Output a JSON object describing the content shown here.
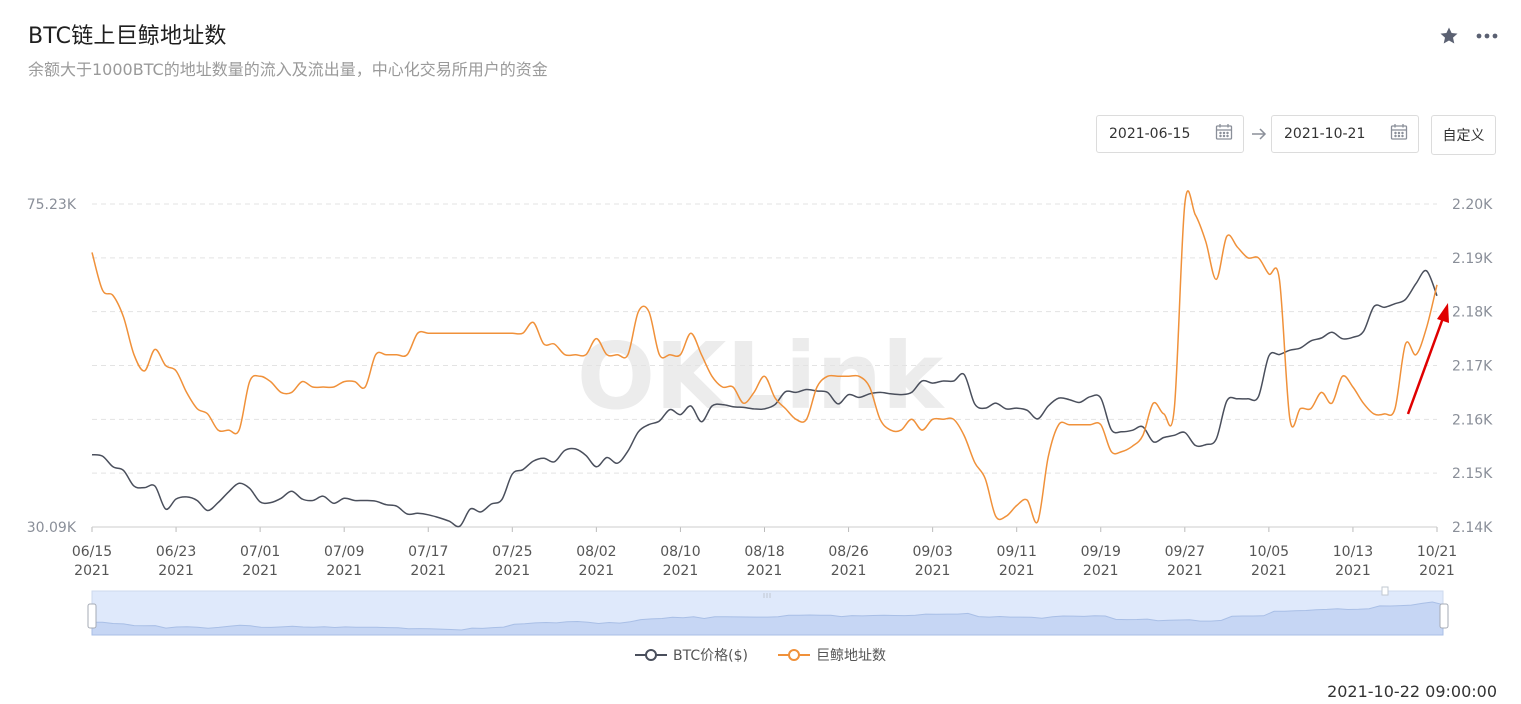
{
  "header": {
    "title": "BTC链上巨鲸地址数",
    "subtitle": "余额大于1000BTC的地址数量的流入及流出量，中心化交易所用户的资金"
  },
  "toolbar": {
    "star_icon": "star-icon",
    "more_icon": "more-icon"
  },
  "date_range": {
    "start": "2021-06-15",
    "end": "2021-10-21",
    "custom_label": "自定义"
  },
  "watermark": "OKLink",
  "timestamp": "2021-10-22 09:00:00",
  "colors": {
    "btc": "#4a4f5c",
    "whale": "#f0913a",
    "grid": "#e3e3e3",
    "navigator": "#dfe9fb",
    "annotation": "#e00000"
  },
  "chart_data": {
    "type": "line",
    "title": "BTC链上巨鲸地址数",
    "x_ticks": [
      {
        "date": "06/15",
        "year": "2021"
      },
      {
        "date": "06/23",
        "year": "2021"
      },
      {
        "date": "07/01",
        "year": "2021"
      },
      {
        "date": "07/09",
        "year": "2021"
      },
      {
        "date": "07/17",
        "year": "2021"
      },
      {
        "date": "07/25",
        "year": "2021"
      },
      {
        "date": "08/02",
        "year": "2021"
      },
      {
        "date": "08/10",
        "year": "2021"
      },
      {
        "date": "08/18",
        "year": "2021"
      },
      {
        "date": "08/26",
        "year": "2021"
      },
      {
        "date": "09/03",
        "year": "2021"
      },
      {
        "date": "09/11",
        "year": "2021"
      },
      {
        "date": "09/19",
        "year": "2021"
      },
      {
        "date": "09/27",
        "year": "2021"
      },
      {
        "date": "10/05",
        "year": "2021"
      },
      {
        "date": "10/13",
        "year": "2021"
      },
      {
        "date": "10/21",
        "year": "2021"
      }
    ],
    "left_axis": {
      "ticks": [
        "75.23K",
        "30.09K"
      ],
      "range": [
        30090,
        75230
      ]
    },
    "right_axis": {
      "ticks": [
        "2.20K",
        "2.19K",
        "2.18K",
        "2.17K",
        "2.16K",
        "2.15K",
        "2.14K"
      ],
      "range": [
        2140,
        2200
      ]
    },
    "grid": true,
    "legend_position": "bottom",
    "series": [
      {
        "name": "BTC价格($)",
        "axis": "left",
        "color": "#4a4f5c",
        "points": [
          [
            "06/15",
            40200
          ],
          [
            "06/16",
            40000
          ],
          [
            "06/17",
            38500
          ],
          [
            "06/18",
            38000
          ],
          [
            "06/19",
            35800
          ],
          [
            "06/20",
            35600
          ],
          [
            "06/21",
            35800
          ],
          [
            "06/22",
            32600
          ],
          [
            "06/23",
            34000
          ],
          [
            "06/24",
            34300
          ],
          [
            "06/25",
            33800
          ],
          [
            "06/26",
            32400
          ],
          [
            "06/27",
            33500
          ],
          [
            "06/28",
            35000
          ],
          [
            "06/29",
            36200
          ],
          [
            "06/30",
            35500
          ],
          [
            "07/01",
            33600
          ],
          [
            "07/02",
            33500
          ],
          [
            "07/03",
            34100
          ],
          [
            "07/04",
            35100
          ],
          [
            "07/05",
            34000
          ],
          [
            "07/06",
            33800
          ],
          [
            "07/07",
            34400
          ],
          [
            "07/08",
            33400
          ],
          [
            "07/09",
            34100
          ],
          [
            "07/10",
            33800
          ],
          [
            "07/11",
            33800
          ],
          [
            "07/12",
            33700
          ],
          [
            "07/13",
            33200
          ],
          [
            "07/14",
            33000
          ],
          [
            "07/15",
            31900
          ],
          [
            "07/16",
            32000
          ],
          [
            "07/17",
            31800
          ],
          [
            "07/18",
            31400
          ],
          [
            "07/19",
            30900
          ],
          [
            "07/20",
            30200
          ],
          [
            "07/21",
            32600
          ],
          [
            "07/22",
            32200
          ],
          [
            "07/23",
            33300
          ],
          [
            "07/24",
            33900
          ],
          [
            "07/25",
            37500
          ],
          [
            "07/26",
            38100
          ],
          [
            "07/27",
            39300
          ],
          [
            "07/28",
            39700
          ],
          [
            "07/29",
            39200
          ],
          [
            "07/30",
            40800
          ],
          [
            "07/31",
            41000
          ],
          [
            "08/01",
            40100
          ],
          [
            "08/02",
            38500
          ],
          [
            "08/03",
            39800
          ],
          [
            "08/04",
            39000
          ],
          [
            "08/05",
            40700
          ],
          [
            "08/06",
            43400
          ],
          [
            "08/07",
            44400
          ],
          [
            "08/08",
            44900
          ],
          [
            "08/09",
            46500
          ],
          [
            "08/10",
            45800
          ],
          [
            "08/11",
            47000
          ],
          [
            "08/12",
            44800
          ],
          [
            "08/13",
            47000
          ],
          [
            "08/14",
            47200
          ],
          [
            "08/15",
            46900
          ],
          [
            "08/16",
            46800
          ],
          [
            "08/17",
            46600
          ],
          [
            "08/18",
            46600
          ],
          [
            "08/19",
            47200
          ],
          [
            "08/20",
            49000
          ],
          [
            "08/21",
            48900
          ],
          [
            "08/22",
            49300
          ],
          [
            "08/23",
            49100
          ],
          [
            "08/24",
            48900
          ],
          [
            "08/25",
            47300
          ],
          [
            "08/26",
            48600
          ],
          [
            "08/27",
            48200
          ],
          [
            "08/28",
            48700
          ],
          [
            "08/29",
            48900
          ],
          [
            "08/30",
            48700
          ],
          [
            "08/31",
            48600
          ],
          [
            "09/01",
            48900
          ],
          [
            "09/02",
            50500
          ],
          [
            "09/03",
            50200
          ],
          [
            "09/04",
            50500
          ],
          [
            "09/05",
            50500
          ],
          [
            "09/06",
            51400
          ],
          [
            "09/07",
            47300
          ],
          [
            "09/08",
            46700
          ],
          [
            "09/09",
            47400
          ],
          [
            "09/10",
            46600
          ],
          [
            "09/11",
            46700
          ],
          [
            "09/12",
            46400
          ],
          [
            "09/13",
            45200
          ],
          [
            "09/14",
            47000
          ],
          [
            "09/15",
            48100
          ],
          [
            "09/16",
            47900
          ],
          [
            "09/17",
            47500
          ],
          [
            "09/18",
            48300
          ],
          [
            "09/19",
            48100
          ],
          [
            "09/20",
            43700
          ],
          [
            "09/21",
            43400
          ],
          [
            "09/22",
            43600
          ],
          [
            "09/23",
            44100
          ],
          [
            "09/24",
            42000
          ],
          [
            "09/25",
            42600
          ],
          [
            "09/26",
            42900
          ],
          [
            "09/27",
            43300
          ],
          [
            "09/28",
            41500
          ],
          [
            "09/29",
            41600
          ],
          [
            "09/30",
            42400
          ],
          [
            "10/01",
            47700
          ],
          [
            "10/02",
            48000
          ],
          [
            "10/03",
            48000
          ],
          [
            "10/04",
            48300
          ],
          [
            "10/05",
            54000
          ],
          [
            "10/06",
            54200
          ],
          [
            "10/07",
            54800
          ],
          [
            "10/08",
            55100
          ],
          [
            "10/09",
            56100
          ],
          [
            "10/10",
            56500
          ],
          [
            "10/11",
            57300
          ],
          [
            "10/12",
            56400
          ],
          [
            "10/13",
            56600
          ],
          [
            "10/14",
            57400
          ],
          [
            "10/15",
            60900
          ],
          [
            "10/16",
            60800
          ],
          [
            "10/17",
            61300
          ],
          [
            "10/18",
            61900
          ],
          [
            "10/19",
            64100
          ],
          [
            "10/20",
            65900
          ],
          [
            "10/21",
            62400
          ]
        ]
      },
      {
        "name": "巨鲸地址数",
        "axis": "right",
        "color": "#f0913a",
        "points": [
          [
            "06/15",
            2191
          ],
          [
            "06/16",
            2184
          ],
          [
            "06/17",
            2183
          ],
          [
            "06/18",
            2179
          ],
          [
            "06/19",
            2172
          ],
          [
            "06/20",
            2169
          ],
          [
            "06/21",
            2173
          ],
          [
            "06/22",
            2170
          ],
          [
            "06/23",
            2169
          ],
          [
            "06/24",
            2165
          ],
          [
            "06/25",
            2162
          ],
          [
            "06/26",
            2161
          ],
          [
            "06/27",
            2158
          ],
          [
            "06/28",
            2158
          ],
          [
            "06/29",
            2158
          ],
          [
            "06/30",
            2167
          ],
          [
            "07/01",
            2168
          ],
          [
            "07/02",
            2167
          ],
          [
            "07/03",
            2165
          ],
          [
            "07/04",
            2165
          ],
          [
            "07/05",
            2167
          ],
          [
            "07/06",
            2166
          ],
          [
            "07/07",
            2166
          ],
          [
            "07/08",
            2166
          ],
          [
            "07/09",
            2167
          ],
          [
            "07/10",
            2167
          ],
          [
            "07/11",
            2166
          ],
          [
            "07/12",
            2172
          ],
          [
            "07/13",
            2172
          ],
          [
            "07/14",
            2172
          ],
          [
            "07/15",
            2172
          ],
          [
            "07/16",
            2176
          ],
          [
            "07/17",
            2176
          ],
          [
            "07/18",
            2176
          ],
          [
            "07/19",
            2176
          ],
          [
            "07/20",
            2176
          ],
          [
            "07/21",
            2176
          ],
          [
            "07/22",
            2176
          ],
          [
            "07/23",
            2176
          ],
          [
            "07/24",
            2176
          ],
          [
            "07/25",
            2176
          ],
          [
            "07/26",
            2176
          ],
          [
            "07/27",
            2178
          ],
          [
            "07/28",
            2174
          ],
          [
            "07/29",
            2174
          ],
          [
            "07/30",
            2172
          ],
          [
            "07/31",
            2172
          ],
          [
            "08/01",
            2172
          ],
          [
            "08/02",
            2175
          ],
          [
            "08/03",
            2172
          ],
          [
            "08/04",
            2172
          ],
          [
            "08/05",
            2172
          ],
          [
            "08/06",
            2180
          ],
          [
            "08/07",
            2180
          ],
          [
            "08/08",
            2172
          ],
          [
            "08/09",
            2172
          ],
          [
            "08/10",
            2172
          ],
          [
            "08/11",
            2176
          ],
          [
            "08/12",
            2172
          ],
          [
            "08/13",
            2168
          ],
          [
            "08/14",
            2166
          ],
          [
            "08/15",
            2166
          ],
          [
            "08/16",
            2163
          ],
          [
            "08/17",
            2165
          ],
          [
            "08/18",
            2168
          ],
          [
            "08/19",
            2164
          ],
          [
            "08/20",
            2162
          ],
          [
            "08/21",
            2160
          ],
          [
            "08/22",
            2160
          ],
          [
            "08/23",
            2166
          ],
          [
            "08/24",
            2168
          ],
          [
            "08/25",
            2168
          ],
          [
            "08/26",
            2168
          ],
          [
            "08/27",
            2168
          ],
          [
            "08/28",
            2166
          ],
          [
            "08/29",
            2160
          ],
          [
            "08/30",
            2158
          ],
          [
            "08/31",
            2158
          ],
          [
            "09/01",
            2160
          ],
          [
            "09/02",
            2158
          ],
          [
            "09/03",
            2160
          ],
          [
            "09/04",
            2160
          ],
          [
            "09/05",
            2160
          ],
          [
            "09/06",
            2157
          ],
          [
            "09/07",
            2152
          ],
          [
            "09/08",
            2149
          ],
          [
            "09/09",
            2142
          ],
          [
            "09/10",
            2142
          ],
          [
            "09/11",
            2144
          ],
          [
            "09/12",
            2145
          ],
          [
            "09/13",
            2141
          ],
          [
            "09/14",
            2153
          ],
          [
            "09/15",
            2159
          ],
          [
            "09/16",
            2159
          ],
          [
            "09/17",
            2159
          ],
          [
            "09/18",
            2159
          ],
          [
            "09/19",
            2159
          ],
          [
            "09/20",
            2154
          ],
          [
            "09/21",
            2154
          ],
          [
            "09/22",
            2155
          ],
          [
            "09/23",
            2157
          ],
          [
            "09/24",
            2163
          ],
          [
            "09/25",
            2161
          ],
          [
            "09/26",
            2162
          ],
          [
            "09/27",
            2200
          ],
          [
            "09/28",
            2198
          ],
          [
            "09/29",
            2193
          ],
          [
            "09/30",
            2186
          ],
          [
            "10/01",
            2194
          ],
          [
            "10/02",
            2192
          ],
          [
            "10/03",
            2190
          ],
          [
            "10/04",
            2190
          ],
          [
            "10/05",
            2187
          ],
          [
            "10/06",
            2186
          ],
          [
            "10/07",
            2160
          ],
          [
            "10/08",
            2162
          ],
          [
            "10/09",
            2162
          ],
          [
            "10/10",
            2165
          ],
          [
            "10/11",
            2163
          ],
          [
            "10/12",
            2168
          ],
          [
            "10/13",
            2166
          ],
          [
            "10/14",
            2163
          ],
          [
            "10/15",
            2161
          ],
          [
            "10/16",
            2161
          ],
          [
            "10/17",
            2162
          ],
          [
            "10/18",
            2174
          ],
          [
            "10/19",
            2172
          ],
          [
            "10/20",
            2177
          ],
          [
            "10/21",
            2185
          ]
        ]
      }
    ]
  }
}
